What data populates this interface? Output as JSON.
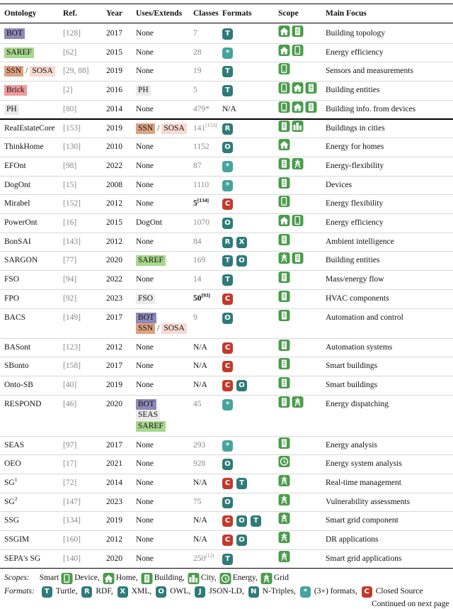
{
  "header": {
    "columns": [
      "Ontology",
      "Ref.",
      "Year",
      "Uses/Extends",
      "Classes",
      "Formats",
      "Scope",
      "Main Focus"
    ]
  },
  "badge_colors": {
    "C": "#c23a2b",
    "*": "#47a39d"
  },
  "rows": [
    {
      "name": [
        {
          "text": "BOT",
          "color": "#8e89b8"
        }
      ],
      "ref": "[128]",
      "year": 2017,
      "uses": [
        [
          {
            "text": "None"
          }
        ]
      ],
      "classes": {
        "text": "7",
        "style": "muted"
      },
      "formats": [
        "T"
      ],
      "scope": [
        "home",
        "building"
      ],
      "focus": "Building topology"
    },
    {
      "name": [
        {
          "text": "SAREF",
          "color": "#a8d88e"
        }
      ],
      "ref": "[62]",
      "year": 2015,
      "uses": [
        [
          {
            "text": "None"
          }
        ]
      ],
      "classes": {
        "text": "28",
        "style": "muted"
      },
      "formats": [
        "*"
      ],
      "scope": [
        "home",
        "device"
      ],
      "focus": "Energy efficiency"
    },
    {
      "name": [
        {
          "text": "SSN",
          "color": "#dea283"
        },
        {
          "text": "/"
        },
        {
          "text": "SOSA",
          "color": "#f8dad0"
        }
      ],
      "ref": "[29, 88]",
      "year": 2019,
      "uses": [
        [
          {
            "text": "None"
          }
        ]
      ],
      "classes": {
        "text": "19",
        "style": "muted"
      },
      "formats": [
        "T"
      ],
      "scope": [
        "device"
      ],
      "focus": "Sensors and measurements"
    },
    {
      "name": [
        {
          "text": "Brick",
          "color": "#ef9c9c"
        }
      ],
      "ref": "[2]",
      "year": 2016,
      "uses": [
        [
          {
            "text": "PH",
            "color": "#ebebeb"
          }
        ]
      ],
      "classes": {
        "text": "5",
        "style": "muted"
      },
      "formats": [
        "T"
      ],
      "scope": [
        "device",
        "home",
        "building"
      ],
      "focus": "Building entities"
    },
    {
      "name": [
        {
          "text": "PH",
          "color": "#ebebeb"
        }
      ],
      "ref": "[80]",
      "year": 2014,
      "uses": [
        [
          {
            "text": "None"
          }
        ]
      ],
      "classes": {
        "text": "479*",
        "style": "muted"
      },
      "formats": "N/A",
      "scope": [
        "device",
        "home",
        "building"
      ],
      "focus": "Building info. from devices"
    },
    {
      "name": [
        {
          "text": "RealEstateCore"
        }
      ],
      "ref": "[153]",
      "year": 2019,
      "uses": [
        [
          {
            "text": "SSN",
            "color": "#dea283"
          },
          {
            "text": "/"
          },
          {
            "text": "SOSA",
            "color": "#f8dad0"
          }
        ]
      ],
      "classes": {
        "text": "141",
        "sup": "[153]",
        "style": "muted"
      },
      "formats": [
        "R"
      ],
      "scope": [
        "building",
        "city"
      ],
      "focus": "Buildings in cities"
    },
    {
      "name": [
        {
          "text": "ThinkHome"
        }
      ],
      "ref": "[130]",
      "year": 2010,
      "uses": [
        [
          {
            "text": "None"
          }
        ]
      ],
      "classes": {
        "text": "1152",
        "style": "muted"
      },
      "formats": [
        "O"
      ],
      "scope": [
        "home"
      ],
      "focus": "Energy for homes"
    },
    {
      "name": [
        {
          "text": "EFOnt"
        }
      ],
      "ref": "[98]",
      "year": 2022,
      "uses": [
        [
          {
            "text": "None"
          }
        ]
      ],
      "classes": {
        "text": "87",
        "style": "muted"
      },
      "formats": [
        "*"
      ],
      "scope": [
        "building",
        "grid"
      ],
      "focus": "Energy-flexibility"
    },
    {
      "name": [
        {
          "text": "DogOnt"
        }
      ],
      "ref": "[15]",
      "year": 2008,
      "uses": [
        [
          {
            "text": "None"
          }
        ]
      ],
      "classes": {
        "text": "1110",
        "style": "muted"
      },
      "formats": [
        "*"
      ],
      "scope": [
        "building"
      ],
      "focus": "Devices"
    },
    {
      "name": [
        {
          "text": "Mirabel"
        }
      ],
      "ref": "[152]",
      "year": 2012,
      "uses": [
        [
          {
            "text": "None"
          }
        ]
      ],
      "classes": {
        "text": "5",
        "sup": "[134]",
        "style": "bold"
      },
      "formats": [
        "C"
      ],
      "scope": [
        "device"
      ],
      "focus": "Energy flexibility"
    },
    {
      "name": [
        {
          "text": "PowerOnt"
        }
      ],
      "ref": "[16]",
      "year": 2015,
      "uses": [
        [
          {
            "text": "DogOnt"
          }
        ]
      ],
      "classes": {
        "text": "1070",
        "style": "muted"
      },
      "formats": [
        "O"
      ],
      "scope": [
        "home",
        "device"
      ],
      "focus": "Energy efficiency"
    },
    {
      "name": [
        {
          "text": "BonSAI"
        }
      ],
      "ref": "[143]",
      "year": 2012,
      "uses": [
        [
          {
            "text": "None"
          }
        ]
      ],
      "classes": {
        "text": "84",
        "style": "muted"
      },
      "formats": [
        "R",
        "X"
      ],
      "scope": [
        "building"
      ],
      "focus": "Ambient intelligence"
    },
    {
      "name": [
        {
          "text": "SARGON"
        }
      ],
      "ref": "[77]",
      "year": 2020,
      "uses": [
        [
          {
            "text": "SAREF",
            "color": "#a8d88e"
          }
        ]
      ],
      "classes": {
        "text": "169",
        "style": "muted"
      },
      "formats": [
        "T",
        "O"
      ],
      "scope": [
        "grid",
        "building"
      ],
      "focus": "Building entities"
    },
    {
      "name": [
        {
          "text": "FSO"
        }
      ],
      "ref": "[94]",
      "year": 2022,
      "uses": [
        [
          {
            "text": "None"
          }
        ]
      ],
      "classes": {
        "text": "14",
        "style": "muted"
      },
      "formats": [
        "T"
      ],
      "scope": [
        "building"
      ],
      "focus": "Mass/energy flow"
    },
    {
      "name": [
        {
          "text": "FPO"
        }
      ],
      "ref": "[92]",
      "year": 2023,
      "uses": [
        [
          {
            "text": "FSO",
            "color": "#ebebeb"
          }
        ]
      ],
      "classes": {
        "text": "50",
        "sup": "[93]",
        "style": "bold"
      },
      "formats": [
        "C"
      ],
      "scope": [
        "building"
      ],
      "focus": "HVAC components"
    },
    {
      "name": [
        {
          "text": "BACS"
        }
      ],
      "ref": "[149]",
      "year": 2017,
      "uses": [
        [
          {
            "text": "BOT",
            "color": "#8e89b8"
          }
        ],
        [
          {
            "text": "SSN",
            "color": "#dea283"
          },
          {
            "text": "/"
          },
          {
            "text": "SOSA",
            "color": "#f8dad0"
          }
        ]
      ],
      "classes": {
        "text": "9",
        "style": "muted"
      },
      "formats": [
        "O"
      ],
      "scope": [
        "building"
      ],
      "focus": "Automation and control"
    },
    {
      "name": [
        {
          "text": "BASont"
        }
      ],
      "ref": "[123]",
      "year": 2012,
      "uses": [
        [
          {
            "text": "None"
          }
        ]
      ],
      "classes": {
        "text": "N/A",
        "style": "plain"
      },
      "formats": [
        "C"
      ],
      "scope": [
        "building"
      ],
      "focus": "Automation systems"
    },
    {
      "name": [
        {
          "text": "SBonto"
        }
      ],
      "ref": "[158]",
      "year": 2017,
      "uses": [
        [
          {
            "text": "None"
          }
        ]
      ],
      "classes": {
        "text": "N/A",
        "style": "plain"
      },
      "formats": [
        "C"
      ],
      "scope": [
        "building"
      ],
      "focus": "Smart buildings"
    },
    {
      "name": [
        {
          "text": "Onto-SB"
        }
      ],
      "ref": "[40]",
      "year": 2019,
      "uses": [
        [
          {
            "text": "None"
          }
        ]
      ],
      "classes": {
        "text": "N/A",
        "style": "plain"
      },
      "formats": [
        "C",
        "O"
      ],
      "scope": [
        "building"
      ],
      "focus": "Smart buildings"
    },
    {
      "name": [
        {
          "text": "RESPOND"
        }
      ],
      "ref": "[46]",
      "year": 2020,
      "uses": [
        [
          {
            "text": "BOT",
            "color": "#8e89b8"
          }
        ],
        [
          {
            "text": "SEAS",
            "color": "#ebebeb"
          }
        ],
        [
          {
            "text": "SAREF",
            "color": "#a8d88e"
          }
        ]
      ],
      "classes": {
        "text": "45",
        "style": "muted"
      },
      "formats": [
        "*"
      ],
      "scope": [
        "building",
        "grid"
      ],
      "focus": "Energy dispatching"
    },
    {
      "name": [
        {
          "text": "SEAS"
        }
      ],
      "ref": "[97]",
      "year": 2017,
      "uses": [
        [
          {
            "text": "None"
          }
        ]
      ],
      "classes": {
        "text": "293",
        "style": "muted"
      },
      "formats": [
        "*"
      ],
      "scope": [
        "building"
      ],
      "focus": "Energy analysis"
    },
    {
      "name": [
        {
          "text": "OEO"
        }
      ],
      "ref": "[17]",
      "year": 2021,
      "uses": [
        [
          {
            "text": "None"
          }
        ]
      ],
      "classes": {
        "text": "928",
        "style": "muted"
      },
      "formats": [
        "O"
      ],
      "scope": [
        "energy"
      ],
      "focus": "Energy system analysis"
    },
    {
      "name": [
        {
          "text": "SG",
          "sup": "1"
        }
      ],
      "ref": "[72]",
      "year": 2014,
      "uses": [
        [
          {
            "text": "None"
          }
        ]
      ],
      "classes": {
        "text": "N/A",
        "style": "plain"
      },
      "formats": [
        "C",
        "T"
      ],
      "scope": [
        "grid"
      ],
      "focus": "Real-time management"
    },
    {
      "name": [
        {
          "text": "SG",
          "sup": "2"
        }
      ],
      "ref": "[147]",
      "year": 2023,
      "uses": [
        [
          {
            "text": "None"
          }
        ]
      ],
      "classes": {
        "text": "75",
        "style": "muted"
      },
      "formats": [
        "O"
      ],
      "scope": [
        "grid"
      ],
      "focus": "Vulnerability assessments"
    },
    {
      "name": [
        {
          "text": "SSG"
        }
      ],
      "ref": "[134]",
      "year": 2019,
      "uses": [
        [
          {
            "text": "None"
          }
        ]
      ],
      "classes": {
        "text": "N/A",
        "style": "plain"
      },
      "formats": [
        "C",
        "O",
        "T"
      ],
      "scope": [
        "grid"
      ],
      "focus": "Smart grid component"
    },
    {
      "name": [
        {
          "text": "SSGIM"
        }
      ],
      "ref": "[160]",
      "year": 2012,
      "uses": [
        [
          {
            "text": "None"
          }
        ]
      ],
      "classes": {
        "text": "N/A",
        "style": "plain"
      },
      "formats": [
        "C",
        "O"
      ],
      "scope": [
        "grid"
      ],
      "focus": "DR applications"
    },
    {
      "name": [
        {
          "text": "SEPA's SG"
        }
      ],
      "ref": "[140]",
      "year": 2020,
      "uses": [
        [
          {
            "text": "None"
          }
        ]
      ],
      "classes": {
        "text": "250",
        "sup": "[12]",
        "style": "muted"
      },
      "formats": [
        "T"
      ],
      "scope": [
        "grid"
      ],
      "focus": "Smart grid applications"
    }
  ],
  "legend": {
    "scopes": {
      "label": "Scopes:",
      "prefix": "Smart",
      "items": [
        {
          "icon": "device",
          "text": "Device,"
        },
        {
          "icon": "home",
          "text": "Home,"
        },
        {
          "icon": "building",
          "text": "Building,"
        },
        {
          "icon": "city",
          "text": "City,"
        },
        {
          "icon": "energy",
          "text": "Energy,"
        },
        {
          "icon": "grid",
          "text": "Grid"
        }
      ]
    },
    "formats": {
      "label": "Formats:",
      "items": [
        {
          "badge": "T",
          "text": "Turtle,"
        },
        {
          "badge": "R",
          "text": "RDF,"
        },
        {
          "badge": "X",
          "text": "XML,"
        },
        {
          "badge": "O",
          "text": "OWL,"
        },
        {
          "badge": "J",
          "text": "JSON-LD,"
        },
        {
          "badge": "N",
          "text": "N-Triples,"
        },
        {
          "badge": "*",
          "text": "(3+) formats,"
        },
        {
          "badge": "C",
          "text": "Closed Source"
        }
      ]
    }
  },
  "footer": "Continued on next page"
}
